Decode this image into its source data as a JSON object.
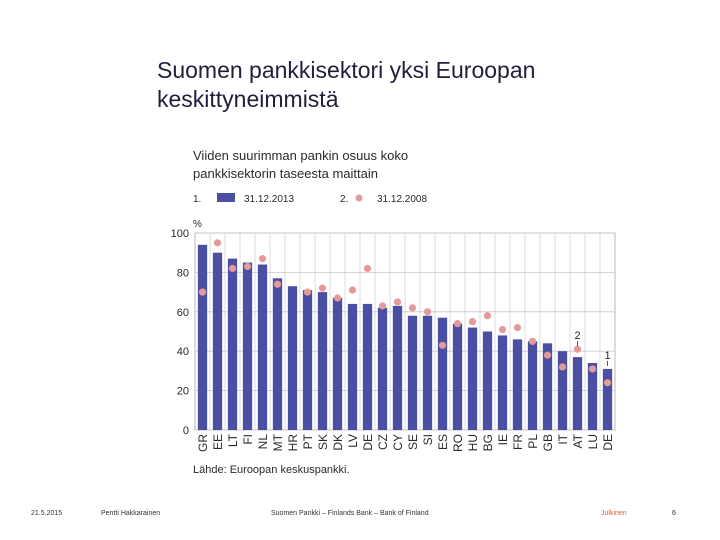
{
  "slide": {
    "title_line1": "Suomen pankkisektori yksi Euroopan",
    "title_line2": "keskittyneimmistä"
  },
  "chart_data": {
    "type": "bar",
    "title_line1": "Viiden suurimman pankin osuus koko",
    "title_line2": "pankkisektorin taseesta maittain",
    "ylabel": "%",
    "ylim": [
      0,
      100
    ],
    "yticks": [
      0,
      20,
      40,
      60,
      80,
      100
    ],
    "grid": true,
    "legend": [
      {
        "marker": "1.",
        "name": "31.12.2013",
        "kind": "bar",
        "color": "#4b4fa3"
      },
      {
        "marker": "2.",
        "name": "31.12.2008",
        "kind": "dot",
        "color": "#e49a9a"
      }
    ],
    "categories": [
      "GR",
      "EE",
      "LT",
      "FI",
      "NL",
      "MT",
      "HR",
      "PT",
      "SK",
      "DK",
      "LV",
      "DE",
      "CZ",
      "CY",
      "SE",
      "SI",
      "ES",
      "RO",
      "HU",
      "BG",
      "IE",
      "FR",
      "PL",
      "GB",
      "IT",
      "AT",
      "LU",
      "DE"
    ],
    "series": [
      {
        "name": "31.12.2013",
        "kind": "bar",
        "values": [
          94,
          90,
          87,
          85,
          84,
          77,
          73,
          71,
          70,
          67,
          64,
          64,
          62,
          63,
          58,
          58,
          57,
          54,
          52,
          50,
          48,
          46,
          45,
          44,
          40,
          37,
          34,
          31
        ]
      },
      {
        "name": "31.12.2008",
        "kind": "dot",
        "values": [
          70,
          95,
          82,
          83,
          87,
          74,
          null,
          70,
          72,
          67,
          71,
          82,
          63,
          65,
          62,
          60,
          43,
          54,
          55,
          58,
          51,
          52,
          45,
          38,
          32,
          41,
          31,
          24
        ]
      }
    ],
    "annotations": [
      {
        "text": "2",
        "category_index": 25
      },
      {
        "text": "1",
        "category_index": 27
      }
    ],
    "source": "Lähde: Euroopan keskuspankki."
  },
  "footer": {
    "date": "21.5.2015",
    "author": "Pentti Hakkarainen",
    "org": "Suomen Pankki – Finlands Bank – Bank of Finland",
    "classification": "Julkinen",
    "page": "6"
  }
}
